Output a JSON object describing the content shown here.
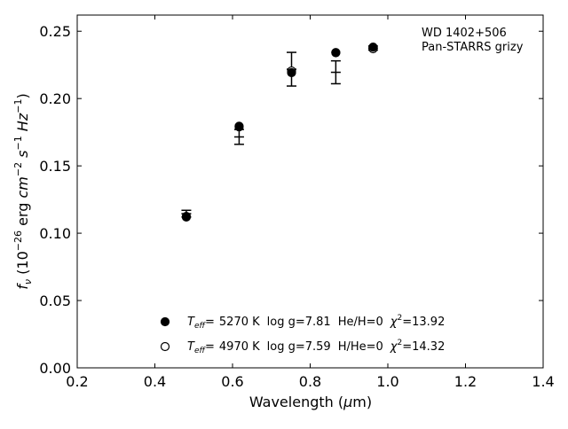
{
  "chart_data": {
    "type": "scatter",
    "xlabel_pre": "Wavelength (",
    "xlabel_mu": "μ",
    "xlabel_post": "m)",
    "ylabel_f": "f",
    "ylabel_sub": "ν",
    "ylabel_open": " (10",
    "ylabel_exp1": "−26",
    "ylabel_mid": " erg ",
    "ylabel_cm": "cm",
    "ylabel_exp2": "−2",
    "ylabel_s": " s",
    "ylabel_exp3": "−1",
    "ylabel_hz": " Hz",
    "ylabel_exp4": "−1",
    "ylabel_close": ")",
    "xlim": [
      0.2,
      1.4
    ],
    "ylim": [
      0.0,
      0.262
    ],
    "xticks": [
      0.2,
      0.4,
      0.6,
      0.8,
      1.0,
      1.2,
      1.4
    ],
    "xtick_labels": [
      "0.2",
      "0.4",
      "0.6",
      "0.8",
      "1.0",
      "1.2",
      "1.4"
    ],
    "yticks": [
      0.0,
      0.05,
      0.1,
      0.15,
      0.2,
      0.25
    ],
    "ytick_labels": [
      "0.00",
      "0.05",
      "0.10",
      "0.15",
      "0.20",
      "0.25"
    ],
    "annotation_lines": [
      "WD 1402+506",
      "Pan-STARRS grizy"
    ],
    "observed": {
      "x": [
        0.481,
        0.617,
        0.752,
        0.866,
        0.962
      ],
      "y": [
        0.1145,
        0.1715,
        0.2218,
        0.2195,
        0.2375
      ],
      "yerr": [
        0.0025,
        0.0055,
        0.0125,
        0.0085,
        0.0015
      ]
    },
    "series": [
      {
        "marker": "filled",
        "x": [
          0.481,
          0.617,
          0.752,
          0.866,
          0.962
        ],
        "y": [
          0.1125,
          0.1795,
          0.2192,
          0.2342,
          0.2382
        ],
        "legend": {
          "t": "T",
          "t_sub": "eff",
          "eq": "=",
          "temp": "5270 K",
          "logg": "log g=7.81",
          "comp": "He/H=0",
          "chi": "χ",
          "chi_sup": "2",
          "chi_val": "=13.92"
        }
      },
      {
        "marker": "open",
        "x": [
          0.481,
          0.617,
          0.752,
          0.866,
          0.962
        ],
        "y": [
          0.112,
          0.179,
          0.2205,
          0.234,
          0.237
        ],
        "legend": {
          "t": "T",
          "t_sub": "eff",
          "eq": "=",
          "temp": "4970 K",
          "logg": "log g=7.59",
          "comp": "H/He=0",
          "chi": "χ",
          "chi_sup": "2",
          "chi_val": "=14.32"
        }
      }
    ],
    "grid": false,
    "legend_position": "lower-center"
  }
}
